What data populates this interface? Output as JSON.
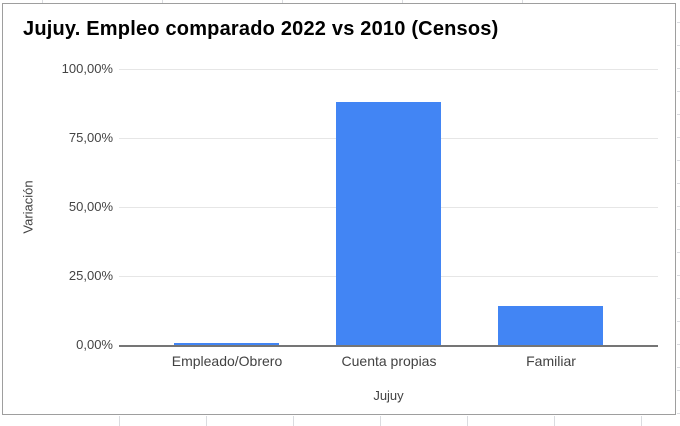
{
  "chart_data": {
    "type": "bar",
    "title": "Jujuy. Empleo comparado 2022 vs 2010 (Censos)",
    "categories": [
      "Empleado/Obrero",
      "Cuenta propias",
      "Familiar"
    ],
    "values": [
      0.9,
      87.9,
      14.0
    ],
    "xlabel": "Jujuy",
    "ylabel": "Variación",
    "ylim": [
      0,
      100
    ],
    "ytick_labels": [
      "0,00%",
      "25,00%",
      "50,00%",
      "75,00%",
      "100,00%"
    ],
    "grid": true,
    "legend": false,
    "bar_color": "#4285f4",
    "gridline_color": "#e6e6e6",
    "baseline_color": "#757575"
  }
}
